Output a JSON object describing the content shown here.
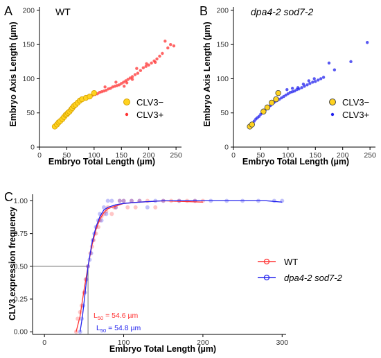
{
  "panels": {
    "a": "A",
    "b": "B",
    "c": "C"
  },
  "colors": {
    "wt": "#ff3333",
    "mutant": "#2222ee",
    "clv3_minus_fill": "#ffd21f",
    "clv3_minus_edge": "#d4a000"
  },
  "chart_data": [
    {
      "panel": "A",
      "type": "scatter",
      "title": "WT",
      "title_style": "normal",
      "xlabel": "Embryo Total Length (µm)",
      "ylabel": "Embryo Axis Length (µm)",
      "xlim": [
        0,
        260
      ],
      "ylim": [
        0,
        205
      ],
      "x_ticks": [
        0,
        50,
        100,
        150,
        200,
        250
      ],
      "y_ticks": [
        0,
        50,
        100,
        150,
        200
      ],
      "grid": false,
      "legend_position": "right",
      "legend": [
        "CLV3−",
        "CLV3+"
      ],
      "series": [
        {
          "name": "CLV3−",
          "points": [
            [
              28,
              30
            ],
            [
              32,
              33
            ],
            [
              35,
              36
            ],
            [
              38,
              38
            ],
            [
              42,
              41
            ],
            [
              45,
              44
            ],
            [
              48,
              47
            ],
            [
              50,
              48
            ],
            [
              52,
              50
            ],
            [
              55,
              52
            ],
            [
              58,
              55
            ],
            [
              60,
              57
            ],
            [
              63,
              60
            ],
            [
              66,
              62
            ],
            [
              70,
              65
            ],
            [
              74,
              68
            ],
            [
              78,
              70
            ],
            [
              85,
              72
            ],
            [
              92,
              74
            ],
            [
              100,
              79
            ]
          ]
        },
        {
          "name": "CLV3+",
          "points": [
            [
              29,
              31
            ],
            [
              31,
              34
            ],
            [
              34,
              35
            ],
            [
              36,
              37
            ],
            [
              39,
              40
            ],
            [
              41,
              42
            ],
            [
              44,
              43
            ],
            [
              46,
              46
            ],
            [
              49,
              48
            ],
            [
              51,
              50
            ],
            [
              54,
              53
            ],
            [
              56,
              55
            ],
            [
              59,
              57
            ],
            [
              62,
              58
            ],
            [
              65,
              61
            ],
            [
              68,
              63
            ],
            [
              71,
              64
            ],
            [
              73,
              66
            ],
            [
              76,
              68
            ],
            [
              79,
              70
            ],
            [
              82,
              71
            ],
            [
              86,
              72
            ],
            [
              90,
              73
            ],
            [
              94,
              74
            ],
            [
              98,
              76
            ],
            [
              102,
              77
            ],
            [
              106,
              78
            ],
            [
              110,
              80
            ],
            [
              114,
              81
            ],
            [
              118,
              82
            ],
            [
              122,
              83
            ],
            [
              126,
              85
            ],
            [
              130,
              86
            ],
            [
              134,
              88
            ],
            [
              138,
              89
            ],
            [
              142,
              90
            ],
            [
              146,
              91
            ],
            [
              150,
              93
            ],
            [
              154,
              95
            ],
            [
              158,
              97
            ],
            [
              162,
              99
            ],
            [
              166,
              101
            ],
            [
              170,
              103
            ],
            [
              175,
              106
            ],
            [
              180,
              108
            ],
            [
              185,
              112
            ],
            [
              190,
              116
            ],
            [
              195,
              118
            ],
            [
              200,
              120
            ],
            [
              205,
              123
            ],
            [
              210,
              126
            ],
            [
              215,
              129
            ],
            [
              220,
              133
            ],
            [
              225,
              137
            ],
            [
              230,
              155
            ],
            [
              235,
              145
            ],
            [
              240,
              150
            ],
            [
              246,
              148
            ],
            [
              155,
              89
            ],
            [
              160,
              94
            ],
            [
              170,
              99
            ],
            [
              178,
              115
            ],
            [
              196,
              122
            ],
            [
              212,
              124
            ],
            [
              120,
              88
            ],
            [
              140,
              95
            ]
          ]
        }
      ]
    },
    {
      "panel": "B",
      "type": "scatter",
      "title": "dpa4-2 sod7-2",
      "title_style": "italic",
      "xlabel": "Embryo Total Length (µm)",
      "ylabel": "Embryo Axis Length (µm)",
      "xlim": [
        0,
        260
      ],
      "ylim": [
        0,
        205
      ],
      "x_ticks": [
        0,
        50,
        100,
        150,
        200,
        250
      ],
      "y_ticks": [
        0,
        50,
        100,
        150,
        200
      ],
      "grid": false,
      "legend_position": "right",
      "legend": [
        "CLV3−",
        "CLV3+"
      ],
      "series": [
        {
          "name": "CLV3−",
          "points": [
            [
              30,
              30
            ],
            [
              34,
              33
            ],
            [
              55,
              52
            ],
            [
              62,
              58
            ],
            [
              70,
              65
            ],
            [
              78,
              70
            ],
            [
              82,
              79
            ]
          ]
        },
        {
          "name": "CLV3+",
          "points": [
            [
              29,
              30
            ],
            [
              32,
              32
            ],
            [
              35,
              35
            ],
            [
              38,
              38
            ],
            [
              41,
              41
            ],
            [
              44,
              43
            ],
            [
              47,
              45
            ],
            [
              50,
              48
            ],
            [
              53,
              50
            ],
            [
              56,
              53
            ],
            [
              59,
              55
            ],
            [
              62,
              57
            ],
            [
              65,
              59
            ],
            [
              68,
              61
            ],
            [
              71,
              63
            ],
            [
              74,
              65
            ],
            [
              77,
              67
            ],
            [
              80,
              68
            ],
            [
              84,
              70
            ],
            [
              88,
              72
            ],
            [
              92,
              74
            ],
            [
              96,
              76
            ],
            [
              100,
              78
            ],
            [
              104,
              80
            ],
            [
              108,
              81
            ],
            [
              112,
              82
            ],
            [
              116,
              84
            ],
            [
              120,
              85
            ],
            [
              125,
              87
            ],
            [
              130,
              89
            ],
            [
              135,
              91
            ],
            [
              140,
              93
            ],
            [
              145,
              95
            ],
            [
              150,
              96
            ],
            [
              155,
              98
            ],
            [
              160,
              100
            ],
            [
              165,
              102
            ],
            [
              175,
              123
            ],
            [
              185,
              113
            ],
            [
              215,
              125
            ],
            [
              245,
              153
            ],
            [
              118,
              87
            ],
            [
              128,
              92
            ],
            [
              138,
              97
            ],
            [
              148,
              100
            ],
            [
              98,
              84
            ],
            [
              108,
              86
            ]
          ]
        }
      ]
    },
    {
      "panel": "C",
      "type": "line",
      "xlabel": "Embryo Total Length (µm)",
      "ylabel": "CLV3 expression frequency",
      "xlim": [
        -15,
        305
      ],
      "ylim": [
        -0.02,
        1.05
      ],
      "x_ticks": [
        0,
        100,
        200,
        300
      ],
      "y_ticks": [
        0.0,
        0.25,
        0.5,
        0.75,
        1.0
      ],
      "y_tick_labels": [
        "0.00",
        "0.25",
        "0.50",
        "0.75",
        "1.00"
      ],
      "grid": false,
      "legend_position": "right",
      "legend": [
        "WT",
        "dpa4-2 sod7-2"
      ],
      "reference_x": 55,
      "reference_y": 0.5,
      "annotations": [
        {
          "label": "L",
          "sub": "50",
          "text": " = 54.6 µm",
          "series": "WT"
        },
        {
          "label": "L",
          "sub": "50",
          "text": " = 54.8 µm",
          "series": "dpa4-2 sod7-2"
        }
      ],
      "series": [
        {
          "name": "WT",
          "curve": [
            [
              40,
              0.0
            ],
            [
              45,
              0.12
            ],
            [
              50,
              0.32
            ],
            [
              55,
              0.5
            ],
            [
              60,
              0.66
            ],
            [
              65,
              0.78
            ],
            [
              70,
              0.86
            ],
            [
              75,
              0.91
            ],
            [
              80,
              0.94
            ],
            [
              90,
              0.96
            ],
            [
              100,
              0.98
            ],
            [
              120,
              0.99
            ],
            [
              150,
              1.0
            ],
            [
              200,
              0.99
            ]
          ],
          "points": [
            [
              40,
              0.0
            ],
            [
              42,
              0.1
            ],
            [
              45,
              0.15
            ],
            [
              47,
              0.2
            ],
            [
              50,
              0.3
            ],
            [
              52,
              0.4
            ],
            [
              55,
              0.5
            ],
            [
              58,
              0.6
            ],
            [
              60,
              0.65
            ],
            [
              62,
              0.7
            ],
            [
              65,
              0.75
            ],
            [
              68,
              0.8
            ],
            [
              70,
              0.85
            ],
            [
              72,
              0.88
            ],
            [
              75,
              0.9
            ],
            [
              78,
              0.92
            ],
            [
              80,
              0.95
            ],
            [
              85,
              0.9
            ],
            [
              88,
              0.95
            ],
            [
              90,
              0.95
            ],
            [
              95,
              1.0
            ],
            [
              100,
              1.0
            ],
            [
              105,
              0.95
            ],
            [
              110,
              1.0
            ],
            [
              115,
              0.95
            ],
            [
              120,
              1.0
            ],
            [
              130,
              1.0
            ],
            [
              140,
              0.95
            ],
            [
              150,
              1.0
            ],
            [
              160,
              1.0
            ],
            [
              170,
              1.0
            ],
            [
              180,
              1.0
            ],
            [
              190,
              1.0
            ],
            [
              200,
              1.0
            ]
          ]
        },
        {
          "name": "dpa4-2 sod7-2",
          "curve": [
            [
              45,
              0.0
            ],
            [
              48,
              0.12
            ],
            [
              51,
              0.28
            ],
            [
              55,
              0.5
            ],
            [
              60,
              0.68
            ],
            [
              65,
              0.8
            ],
            [
              70,
              0.88
            ],
            [
              75,
              0.93
            ],
            [
              80,
              0.95
            ],
            [
              90,
              0.97
            ],
            [
              100,
              0.98
            ],
            [
              120,
              0.99
            ],
            [
              150,
              1.0
            ],
            [
              200,
              1.0
            ],
            [
              250,
              1.0
            ],
            [
              280,
              1.0
            ],
            [
              300,
              0.99
            ]
          ],
          "points": [
            [
              45,
              0.0
            ],
            [
              47,
              0.1
            ],
            [
              49,
              0.2
            ],
            [
              51,
              0.3
            ],
            [
              53,
              0.4
            ],
            [
              55,
              0.5
            ],
            [
              57,
              0.55
            ],
            [
              59,
              0.6
            ],
            [
              61,
              0.7
            ],
            [
              63,
              0.75
            ],
            [
              65,
              0.8
            ],
            [
              68,
              0.85
            ],
            [
              70,
              0.9
            ],
            [
              72,
              0.85
            ],
            [
              75,
              0.95
            ],
            [
              78,
              0.9
            ],
            [
              80,
              1.0
            ],
            [
              85,
              1.0
            ],
            [
              90,
              0.95
            ],
            [
              95,
              1.0
            ],
            [
              100,
              1.0
            ],
            [
              110,
              1.0
            ],
            [
              120,
              1.0
            ],
            [
              130,
              0.95
            ],
            [
              140,
              1.0
            ],
            [
              150,
              1.0
            ],
            [
              170,
              1.0
            ],
            [
              190,
              1.0
            ],
            [
              210,
              1.0
            ],
            [
              230,
              1.0
            ],
            [
              250,
              1.0
            ],
            [
              270,
              1.0
            ],
            [
              290,
              1.0
            ],
            [
              300,
              1.0
            ]
          ]
        }
      ]
    }
  ]
}
